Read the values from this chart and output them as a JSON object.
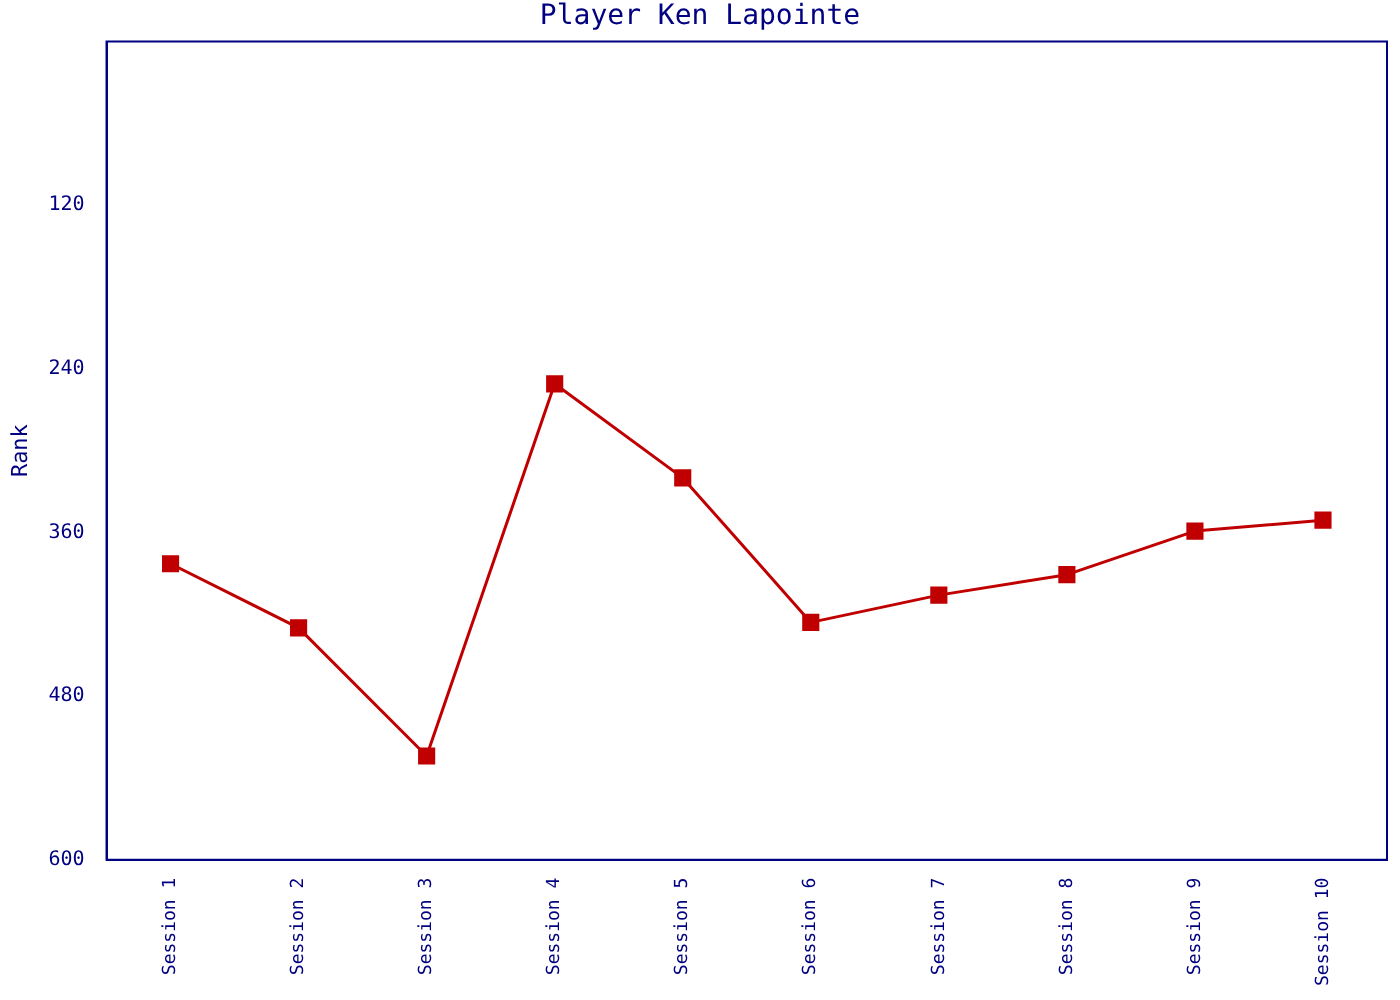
{
  "chart_data": {
    "type": "line",
    "title": "Player Ken Lapointe",
    "ylabel": "Rank",
    "categories": [
      "Session 1",
      "Session 2",
      "Session 3",
      "Session 4",
      "Session 5",
      "Session 6",
      "Session 7",
      "Session 8",
      "Session 9",
      "Session 10"
    ],
    "series": [
      {
        "color": "#c00000",
        "values": [
          383,
          430,
          524,
          251,
          320,
          426,
          406,
          391,
          359,
          351
        ]
      }
    ],
    "ylim": [
      600,
      0
    ],
    "yticks": [
      120,
      240,
      360,
      480,
      600
    ],
    "grid": false,
    "legend": false,
    "marker": "square",
    "line_style": "solid"
  }
}
